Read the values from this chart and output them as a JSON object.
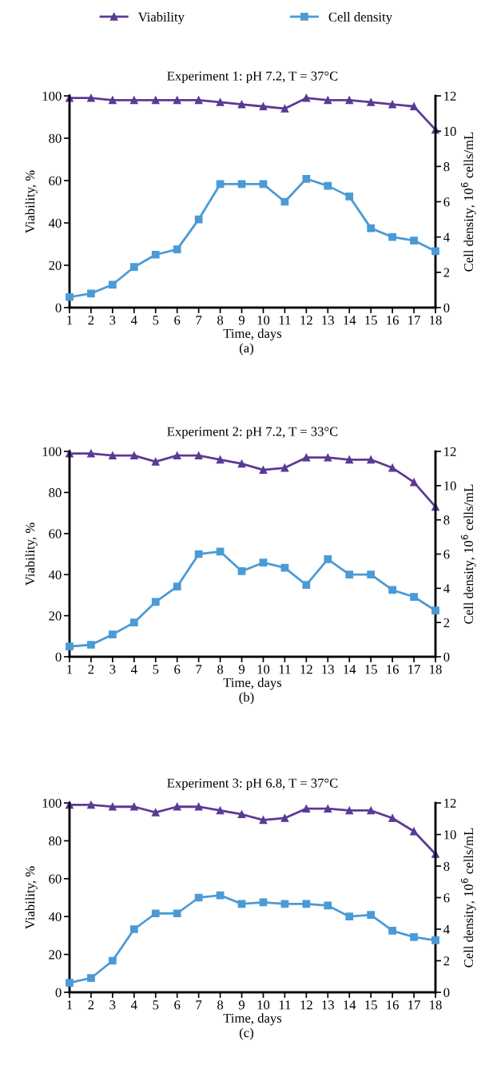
{
  "chart_data": [
    {
      "type": "line",
      "title": "Experiment 1: pH 7.2, T = 37°C",
      "xlabel": "Time, days",
      "ylabel": "Viability, %",
      "y2label": "Cell density, 10$^{6}$ cells/mL",
      "annotations": [
        "(a)"
      ],
      "categories": [
        "1",
        "2",
        "3",
        "4",
        "5",
        "6",
        "7",
        "8",
        "9",
        "10",
        "11",
        "12",
        "13",
        "14",
        "15",
        "16",
        "17",
        "18"
      ],
      "ylim": [
        0,
        100
      ],
      "yticks": [
        0,
        20,
        40,
        60,
        80,
        100
      ],
      "y2lim": [
        0,
        12
      ],
      "y2ticks": [
        0,
        2,
        4,
        6,
        8,
        10,
        12
      ],
      "legend": "top",
      "grid": false,
      "series": [
        {
          "name": "Viability",
          "color": "#5b3a95",
          "marker": "triangle",
          "values": [
            99,
            99,
            98,
            98,
            98,
            98,
            98,
            97,
            96,
            95,
            94,
            99,
            98,
            98,
            97,
            96,
            95,
            84
          ]
        },
        {
          "name": "Cell density",
          "color": "#4a9ad6",
          "marker": "square",
          "axis": "y2",
          "values": [
            0.6,
            0.8,
            1.3,
            2.3,
            3.0,
            3.3,
            5.0,
            7.0,
            7.0,
            7.0,
            6.0,
            7.3,
            6.9,
            6.3,
            4.5,
            4.0,
            3.8,
            3.2
          ]
        }
      ]
    },
    {
      "type": "line",
      "title": "Experiment 2: pH 7.2, T = 33°C",
      "xlabel": "Time, days",
      "ylabel": "Viability, %",
      "y2label": "Cell density, 10$^{6}$ cells/mL",
      "annotations": [
        "(b)"
      ],
      "categories": [
        "1",
        "2",
        "3",
        "4",
        "5",
        "6",
        "7",
        "8",
        "9",
        "10",
        "11",
        "12",
        "13",
        "14",
        "15",
        "16",
        "17",
        "18"
      ],
      "ylim": [
        0,
        100
      ],
      "yticks": [
        0,
        20,
        40,
        60,
        80,
        100
      ],
      "y2lim": [
        0,
        12
      ],
      "y2ticks": [
        0,
        2,
        4,
        6,
        8,
        10,
        12
      ],
      "grid": false,
      "series": [
        {
          "color": "#5b3a95",
          "marker": "triangle",
          "values": [
            99,
            99,
            98,
            98,
            95,
            98,
            98,
            96,
            94,
            91,
            92,
            97,
            97,
            96,
            96,
            92,
            85,
            73
          ]
        },
        {
          "color": "#4a9ad6",
          "marker": "square",
          "axis": "y2",
          "values": [
            0.6,
            0.7,
            1.3,
            2.0,
            3.2,
            4.1,
            6.0,
            6.15,
            5.0,
            5.5,
            5.2,
            4.2,
            5.7,
            4.8,
            4.8,
            3.9,
            3.5,
            2.7
          ]
        }
      ]
    },
    {
      "type": "line",
      "title": "Experiment 3: pH 6.8, T = 37°C",
      "xlabel": "Time, days",
      "ylabel": "Viability, %",
      "y2label": "Cell density, 10$^{6}$ cells/mL",
      "annotations": [
        "(c)"
      ],
      "categories": [
        "1",
        "2",
        "3",
        "4",
        "5",
        "6",
        "7",
        "8",
        "9",
        "10",
        "11",
        "12",
        "13",
        "14",
        "15",
        "16",
        "17",
        "18"
      ],
      "ylim": [
        0,
        100
      ],
      "yticks": [
        0,
        20,
        40,
        60,
        80,
        100
      ],
      "y2lim": [
        0,
        12
      ],
      "y2ticks": [
        0,
        2,
        4,
        6,
        8,
        10,
        12
      ],
      "grid": false,
      "series": [
        {
          "color": "#5b3a95",
          "marker": "triangle",
          "values": [
            99,
            99,
            98,
            98,
            95,
            98,
            98,
            96,
            94,
            91,
            92,
            97,
            97,
            96,
            96,
            92,
            85,
            73
          ]
        },
        {
          "color": "#4a9ad6",
          "marker": "square",
          "axis": "y2",
          "values": [
            0.6,
            0.9,
            2.0,
            4.0,
            5.0,
            5.0,
            6.0,
            6.15,
            5.6,
            5.7,
            5.6,
            5.6,
            5.5,
            4.8,
            4.9,
            3.9,
            3.5,
            3.3
          ]
        }
      ]
    }
  ]
}
